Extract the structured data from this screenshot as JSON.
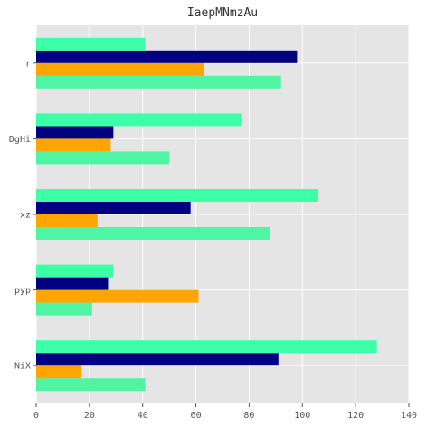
{
  "chart_data": {
    "type": "bar",
    "orientation": "horizontal",
    "title": "IaepMNmzAu",
    "xlabel": "",
    "ylabel": "",
    "categories": [
      "NiX",
      "pyp",
      "xz",
      "DgHi",
      "r"
    ],
    "series": [
      {
        "color": "#50f5a3",
        "values": [
          41,
          21,
          88,
          50,
          92
        ]
      },
      {
        "color": "#ffa500",
        "values": [
          17,
          61,
          23,
          28,
          63
        ]
      },
      {
        "color": "#000080",
        "values": [
          91,
          27,
          58,
          29,
          98
        ]
      },
      {
        "color": "#3dffa8",
        "values": [
          128,
          29,
          106,
          77,
          41
        ]
      }
    ],
    "xlim": [
      0,
      140
    ],
    "xticks": [
      0,
      20,
      40,
      60,
      80,
      100,
      120,
      140
    ],
    "grid": true,
    "style": "ggplot",
    "background": "#e5e5e5",
    "grid_color": "#ffffff"
  }
}
